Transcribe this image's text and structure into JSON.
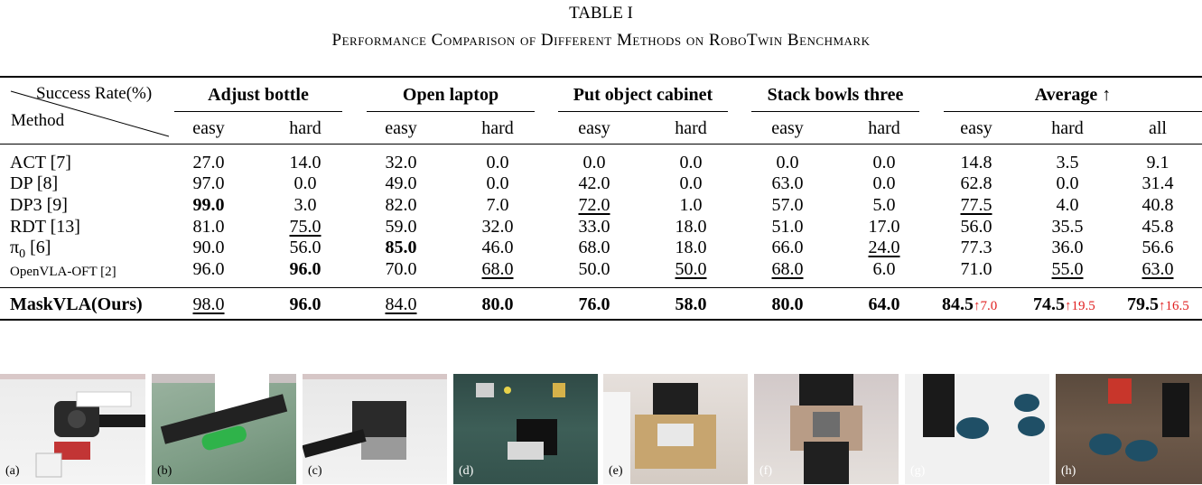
{
  "caption": {
    "title": "TABLE I",
    "subtitle": "Performance Comparison of Different Methods on RoboTwin Benchmark"
  },
  "table": {
    "corner_top": "Success Rate(%)",
    "corner_bottom": "Method",
    "groups": [
      "Adjust bottle",
      "Open laptop",
      "Put object cabinet",
      "Stack bowls three",
      "Average ↑"
    ],
    "subheaders": [
      "easy",
      "hard",
      "easy",
      "hard",
      "easy",
      "hard",
      "easy",
      "hard",
      "easy",
      "hard",
      "all"
    ],
    "rows": [
      {
        "method": "ACT [7]",
        "values": [
          "27.0",
          "14.0",
          "32.0",
          "0.0",
          "0.0",
          "0.0",
          "0.0",
          "0.0",
          "14.8",
          "3.5",
          "9.1"
        ]
      },
      {
        "method": "DP [8]",
        "values": [
          "97.0",
          "0.0",
          "49.0",
          "0.0",
          "42.0",
          "0.0",
          "63.0",
          "0.0",
          "62.8",
          "0.0",
          "31.4"
        ]
      },
      {
        "method": "DP3 [9]",
        "values": [
          "99.0",
          "3.0",
          "82.0",
          "7.0",
          "72.0",
          "1.0",
          "57.0",
          "5.0",
          "77.5",
          "4.0",
          "40.8"
        ]
      },
      {
        "method": "RDT [13]",
        "values": [
          "81.0",
          "75.0",
          "59.0",
          "32.0",
          "33.0",
          "18.0",
          "51.0",
          "17.0",
          "56.0",
          "35.5",
          "45.8"
        ]
      },
      {
        "method": "π0 [6]",
        "values": [
          "90.0",
          "56.0",
          "85.0",
          "46.0",
          "68.0",
          "18.0",
          "66.0",
          "24.0",
          "77.3",
          "36.0",
          "56.6"
        ]
      },
      {
        "method": "OpenVLA-OFT [2]",
        "values": [
          "96.0",
          "96.0",
          "70.0",
          "68.0",
          "50.0",
          "50.0",
          "68.0",
          "6.0",
          "71.0",
          "55.0",
          "63.0"
        ]
      }
    ],
    "ours": {
      "method": "MaskVLA(Ours)",
      "values": [
        "98.0",
        "96.0",
        "84.0",
        "80.0",
        "76.0",
        "58.0",
        "80.0",
        "64.0",
        "84.5",
        "74.5",
        "79.5"
      ],
      "deltas": [
        "↑7.0",
        "↑19.5",
        "↑16.5"
      ]
    }
  },
  "panels": [
    {
      "label": "(a)"
    },
    {
      "label": "(b)"
    },
    {
      "label": "(c)"
    },
    {
      "label": "(d)"
    },
    {
      "label": "(e)"
    },
    {
      "label": "(f)"
    },
    {
      "label": "(g)"
    },
    {
      "label": "(h)"
    }
  ]
}
